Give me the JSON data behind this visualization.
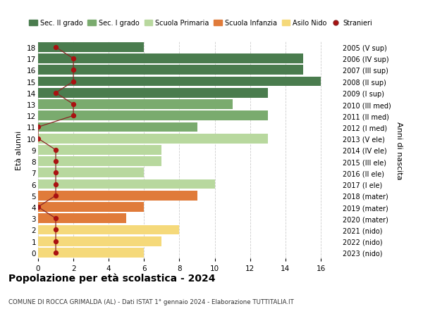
{
  "ages": [
    18,
    17,
    16,
    15,
    14,
    13,
    12,
    11,
    10,
    9,
    8,
    7,
    6,
    5,
    4,
    3,
    2,
    1,
    0
  ],
  "bar_values": [
    6,
    15,
    15,
    16,
    13,
    11,
    13,
    9,
    13,
    7,
    7,
    6,
    10,
    9,
    6,
    5,
    8,
    7,
    6
  ],
  "bar_colors": [
    "#4a7c4e",
    "#4a7c4e",
    "#4a7c4e",
    "#4a7c4e",
    "#4a7c4e",
    "#7aab6e",
    "#7aab6e",
    "#7aab6e",
    "#b8d89e",
    "#b8d89e",
    "#b8d89e",
    "#b8d89e",
    "#b8d89e",
    "#e07b3a",
    "#e07b3a",
    "#e07b3a",
    "#f5d97a",
    "#f5d97a",
    "#f5d97a"
  ],
  "stranieri_x": [
    1,
    2,
    2,
    2,
    1,
    2,
    2,
    0,
    0,
    1,
    1,
    1,
    1,
    1,
    0,
    1,
    1,
    1,
    1
  ],
  "right_labels": [
    "2005 (V sup)",
    "2006 (IV sup)",
    "2007 (III sup)",
    "2008 (II sup)",
    "2009 (I sup)",
    "2010 (III med)",
    "2011 (II med)",
    "2012 (I med)",
    "2013 (V ele)",
    "2014 (IV ele)",
    "2015 (III ele)",
    "2016 (II ele)",
    "2017 (I ele)",
    "2018 (mater)",
    "2019 (mater)",
    "2020 (mater)",
    "2021 (nido)",
    "2022 (nido)",
    "2023 (nido)"
  ],
  "legend_labels": [
    "Sec. II grado",
    "Sec. I grado",
    "Scuola Primaria",
    "Scuola Infanzia",
    "Asilo Nido",
    "Stranieri"
  ],
  "legend_colors": [
    "#4a7c4e",
    "#7aab6e",
    "#b8d89e",
    "#e07b3a",
    "#f5d97a",
    "#aa1111"
  ],
  "ylabel_left": "Età alunni",
  "ylabel_right": "Anni di nascita",
  "title": "Popolazione per età scolastica - 2024",
  "subtitle": "COMUNE DI ROCCA GRIMALDA (AL) - Dati ISTAT 1° gennaio 2024 - Elaborazione TUTTITALIA.IT",
  "xlim": [
    0,
    17
  ],
  "xticks": [
    0,
    2,
    4,
    6,
    8,
    10,
    12,
    14,
    16
  ],
  "background_color": "#ffffff",
  "grid_color": "#cccccc",
  "stranieri_dot_color": "#aa1111",
  "stranieri_line_color": "#8b2525"
}
